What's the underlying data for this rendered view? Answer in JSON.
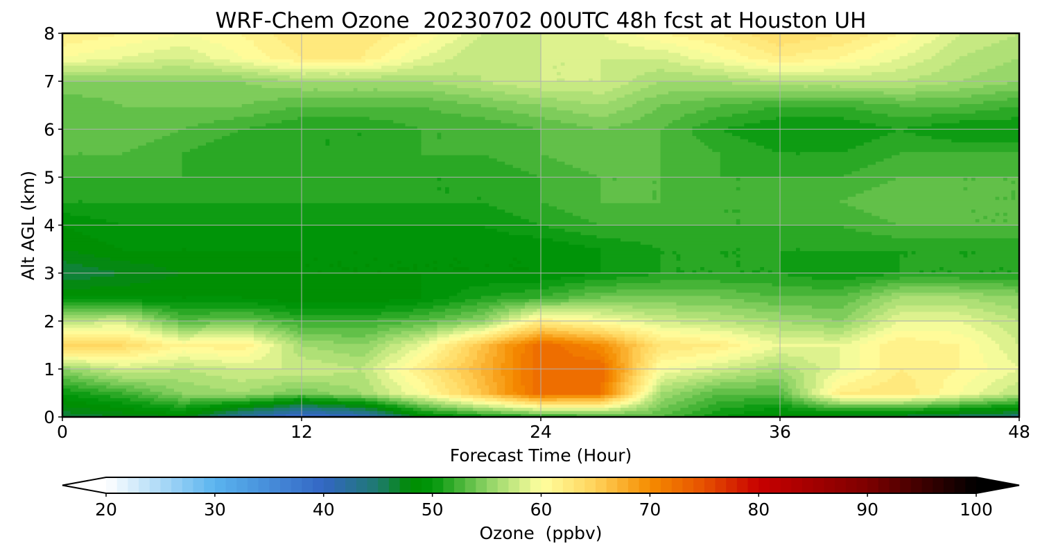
{
  "chart_data": {
    "type": "heatmap",
    "title": "WRF-Chem Ozone  20230702 00UTC 48h fcst at Houston UH",
    "xlabel": "Forecast Time (Hour)",
    "ylabel": "Alt AGL (km)",
    "xlim": [
      0,
      48
    ],
    "ylim": [
      0,
      8
    ],
    "x_ticks": [
      "0",
      "12",
      "24",
      "36",
      "48"
    ],
    "y_ticks": [
      "0",
      "1",
      "2",
      "3",
      "4",
      "5",
      "6",
      "7",
      "8"
    ],
    "grid": true,
    "colorbar": {
      "label": "Ozone  (ppbv)",
      "min": 20,
      "max": 100,
      "ticks": [
        "20",
        "30",
        "40",
        "50",
        "60",
        "70",
        "80",
        "90",
        "100"
      ],
      "extend": "both",
      "levels": 80,
      "colors": [
        {
          "value": 20,
          "color": "#ffffff"
        },
        {
          "value": 30,
          "color": "#5ab4ef"
        },
        {
          "value": 40,
          "color": "#3366c4"
        },
        {
          "value": 45,
          "color": "#1e7a6e"
        },
        {
          "value": 48,
          "color": "#008c00"
        },
        {
          "value": 50,
          "color": "#00960a"
        },
        {
          "value": 55,
          "color": "#8cd264"
        },
        {
          "value": 60,
          "color": "#ffffa0"
        },
        {
          "value": 65,
          "color": "#ffd25a"
        },
        {
          "value": 70,
          "color": "#f58c00"
        },
        {
          "value": 75,
          "color": "#e65000"
        },
        {
          "value": 80,
          "color": "#c80000"
        },
        {
          "value": 90,
          "color": "#7d0000"
        },
        {
          "value": 100,
          "color": "#000000"
        }
      ]
    },
    "times": [
      0,
      3,
      6,
      9,
      12,
      15,
      18,
      21,
      24,
      27,
      30,
      33,
      36,
      39,
      42,
      45,
      48
    ],
    "altitudes": [
      0,
      0.5,
      1,
      1.5,
      2,
      2.5,
      3,
      3.5,
      4,
      4.5,
      5,
      5.5,
      6,
      6.5,
      7,
      7.5,
      8
    ],
    "ozone": [
      [
        46,
        47,
        48,
        42,
        38,
        40,
        48,
        50,
        51,
        52,
        53,
        50,
        48,
        47,
        46,
        45,
        44
      ],
      [
        50,
        52,
        55,
        56,
        54,
        56,
        60,
        66,
        73,
        72,
        56,
        53,
        53,
        62,
        63,
        60,
        57
      ],
      [
        55,
        58,
        57,
        58,
        58,
        57,
        62,
        67,
        73,
        73,
        60,
        58,
        56,
        59,
        62,
        61,
        59
      ],
      [
        65,
        64,
        61,
        62,
        56,
        55,
        59,
        66,
        73,
        70,
        63,
        62,
        59,
        59,
        62,
        61,
        58
      ],
      [
        57,
        58,
        53,
        54,
        52,
        52,
        53,
        55,
        62,
        60,
        58,
        57,
        56,
        55,
        59,
        59,
        57
      ],
      [
        49,
        49,
        49,
        49,
        48,
        48,
        49,
        51,
        52,
        54,
        54,
        54,
        53,
        53,
        56,
        56,
        55
      ],
      [
        46,
        47,
        48,
        48,
        49,
        49,
        49,
        49,
        49,
        50,
        51,
        51,
        51,
        50,
        51,
        51,
        51
      ],
      [
        48,
        49,
        49,
        49,
        49,
        49,
        49,
        49,
        49,
        50,
        51,
        51,
        51,
        51,
        51,
        51,
        51
      ],
      [
        49,
        50,
        50,
        50,
        50,
        50,
        50,
        50,
        51,
        52,
        52,
        52,
        52,
        52,
        53,
        53,
        53
      ],
      [
        51,
        51,
        51,
        51,
        51,
        51,
        51,
        51,
        52,
        53,
        53,
        52,
        52,
        53,
        54,
        53,
        53
      ],
      [
        52,
        52,
        52,
        52,
        52,
        52,
        51,
        51,
        52,
        53,
        53,
        52,
        52,
        52,
        53,
        53,
        53
      ],
      [
        53,
        53,
        52,
        51,
        51,
        51,
        52,
        52,
        53,
        54,
        53,
        52,
        51,
        51,
        52,
        52,
        52
      ],
      [
        53,
        54,
        53,
        52,
        51,
        51,
        52,
        52,
        53,
        54,
        53,
        51,
        50,
        50,
        51,
        50,
        50
      ],
      [
        53,
        54,
        54,
        54,
        53,
        53,
        53,
        54,
        55,
        56,
        54,
        53,
        52,
        52,
        53,
        53,
        52
      ],
      [
        55,
        55,
        55,
        55,
        56,
        56,
        56,
        57,
        58,
        58,
        56,
        56,
        57,
        57,
        57,
        56,
        55
      ],
      [
        60,
        59,
        58,
        60,
        62,
        62,
        59,
        57,
        58,
        58,
        58,
        60,
        62,
        61,
        59,
        57,
        56
      ],
      [
        62,
        61,
        60,
        61,
        63,
        63,
        61,
        58,
        58,
        59,
        61,
        62,
        64,
        63,
        61,
        58,
        57
      ]
    ]
  }
}
